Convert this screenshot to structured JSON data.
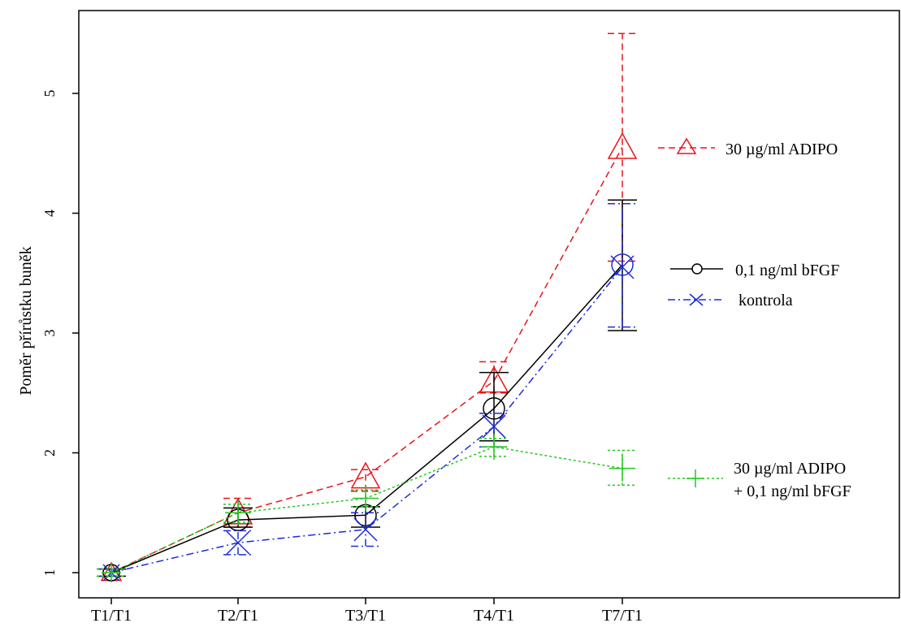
{
  "chart_data": {
    "type": "line",
    "title": "",
    "xlabel": "",
    "ylabel": "Poměr přírůstku buněk",
    "categories": [
      "T1/T1",
      "T2/T1",
      "T3/T1",
      "T4/T1",
      "T7/T1"
    ],
    "ylim": [
      0.9,
      5.6
    ],
    "yticks": [
      1,
      2,
      3,
      4,
      5
    ],
    "grid": false,
    "series": [
      {
        "name": "30 µg/ml ADIPO",
        "color": "#e8141b",
        "dash": "dashed",
        "marker": "triangle",
        "values": [
          1.0,
          1.5,
          1.8,
          2.6,
          4.55
        ],
        "err_low": [
          0.97,
          1.38,
          1.68,
          2.5,
          3.6
        ],
        "err_high": [
          1.03,
          1.62,
          1.86,
          2.76,
          5.5
        ]
      },
      {
        "name": "0,1 ng/ml bFGF",
        "color": "#000000",
        "dash": "solid",
        "marker": "circle",
        "values": [
          1.0,
          1.44,
          1.48,
          2.37,
          3.57
        ],
        "err_low": [
          0.97,
          1.38,
          1.38,
          2.1,
          3.02
        ],
        "err_high": [
          1.03,
          1.54,
          1.55,
          2.67,
          4.11
        ]
      },
      {
        "name": "kontrola",
        "color": "#1c2bd9",
        "dash": "dashdot",
        "marker": "x",
        "values": [
          1.0,
          1.25,
          1.36,
          2.22,
          3.55
        ],
        "err_low": [
          0.97,
          1.15,
          1.22,
          2.05,
          3.05
        ],
        "err_high": [
          1.03,
          1.35,
          1.5,
          2.33,
          4.08
        ]
      },
      {
        "name": "30 µg/ml ADIPO\n+ 0,1 ng/ml bFGF",
        "color": "#22c81f",
        "dash": "dotted",
        "marker": "plus",
        "values": [
          1.0,
          1.5,
          1.62,
          2.05,
          1.87
        ],
        "err_low": [
          0.97,
          1.42,
          1.55,
          1.97,
          1.73
        ],
        "err_high": [
          1.03,
          1.57,
          1.69,
          2.12,
          2.02
        ]
      }
    ],
    "legend": [
      {
        "label": "30 µg/ml ADIPO",
        "series": 0
      },
      {
        "label": "0,1 ng/ml bFGF",
        "series": 1
      },
      {
        "label": "kontrola",
        "series": 2
      },
      {
        "label": "30 µg/ml ADIPO",
        "label2": "+ 0,1 ng/ml bFGF",
        "series": 3
      }
    ]
  }
}
